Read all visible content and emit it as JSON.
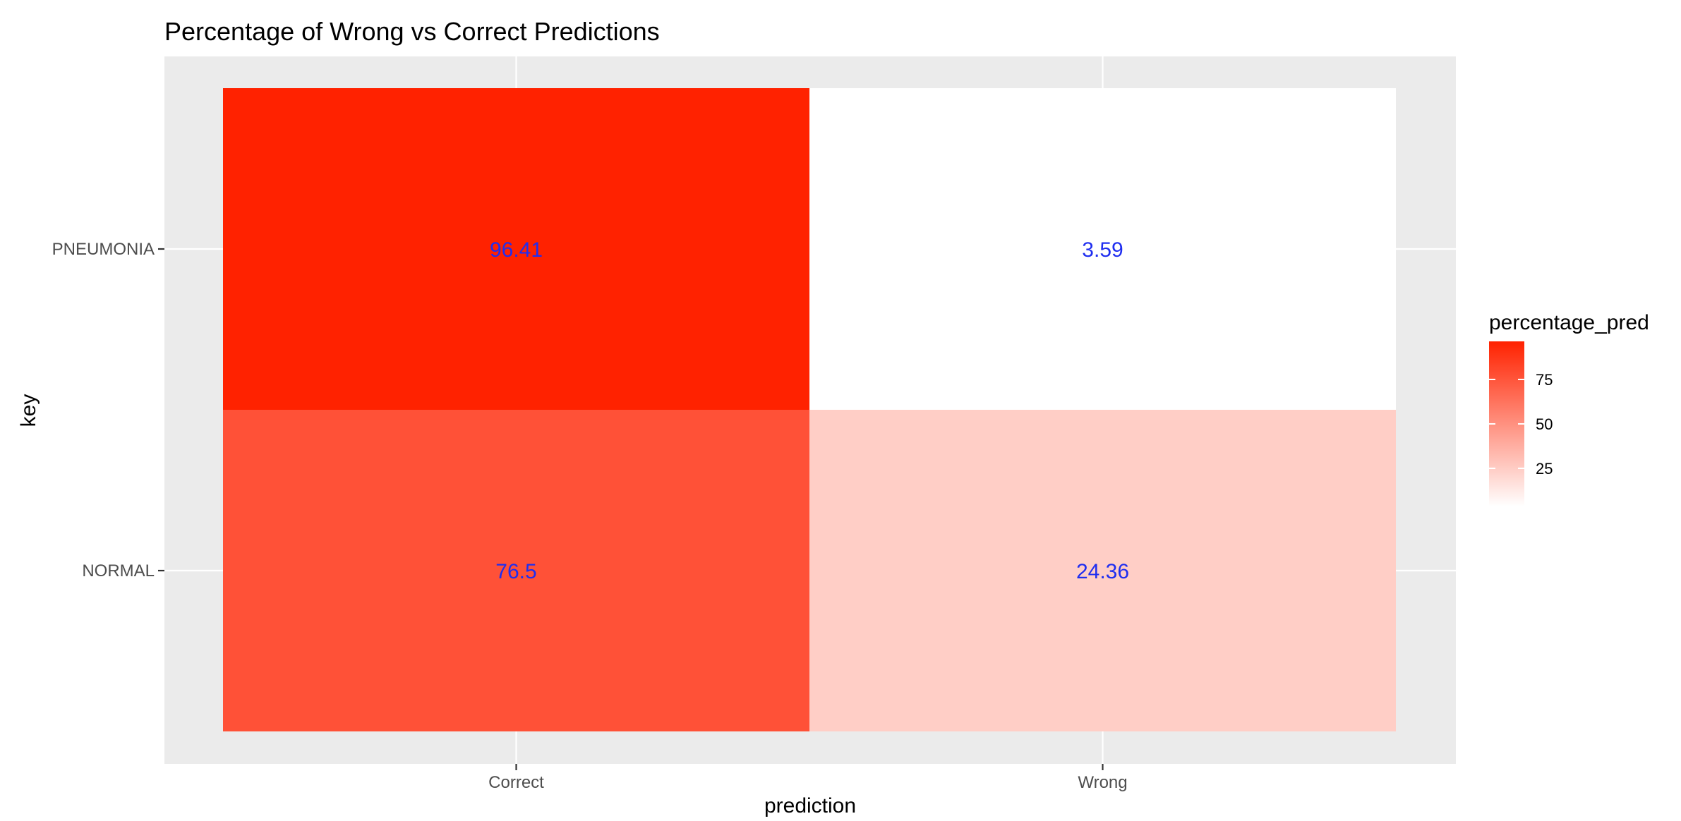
{
  "chart_data": {
    "type": "heatmap",
    "title": "Percentage of Wrong vs Correct Predictions",
    "xlabel": "prediction",
    "ylabel": "key",
    "x_categories": [
      "Correct",
      "Wrong"
    ],
    "y_categories": [
      "NORMAL",
      "PNEUMONIA"
    ],
    "cells": [
      {
        "x": "Correct",
        "y": "PNEUMONIA",
        "value": 96.41,
        "label": "96.41"
      },
      {
        "x": "Wrong",
        "y": "PNEUMONIA",
        "value": 3.59,
        "label": "3.59"
      },
      {
        "x": "Correct",
        "y": "NORMAL",
        "value": 76.5,
        "label": "76.5"
      },
      {
        "x": "Wrong",
        "y": "NORMAL",
        "value": 24.36,
        "label": "24.36"
      }
    ],
    "legend": {
      "title": "percentage_pred",
      "placement": "right",
      "ticks": [
        25,
        50,
        75
      ],
      "tick_labels": [
        "25",
        "50",
        "75"
      ],
      "range": [
        3.59,
        96.41
      ]
    },
    "grid": true,
    "colors": {
      "low": "#ffffff",
      "high": "#ff2200",
      "panel_background": "#ebebeb",
      "grid": "#ffffff",
      "cell_label": "#1f2ef0"
    }
  }
}
